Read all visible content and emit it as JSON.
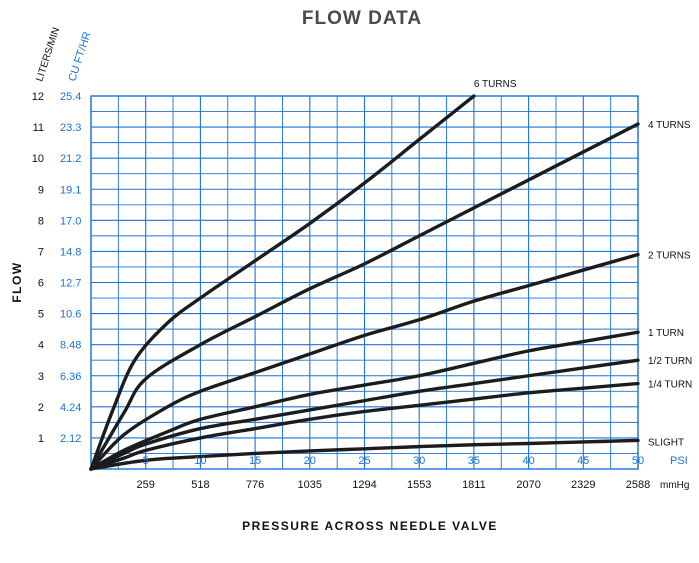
{
  "chart_data": {
    "type": "line",
    "title": "FLOW DATA",
    "xlabel": "PRESSURE ACROSS NEEDLE VALVE",
    "ylabel": "FLOW",
    "y_units_left": "LITERS/MIN",
    "y_units_right": "CU FT/HR",
    "x_units_psi": "PSI",
    "x_units_mmhg": "mmHg",
    "xlim": [
      0,
      50
    ],
    "ylim": [
      0,
      12
    ],
    "grid": true,
    "x_ticks_psi": [
      5,
      10,
      15,
      20,
      25,
      30,
      35,
      40,
      45,
      50
    ],
    "x_ticks_mmhg": [
      "259",
      "518",
      "776",
      "1035",
      "1294",
      "1553",
      "1811",
      "2070",
      "2329",
      "2588"
    ],
    "y_ticks_lpm": [
      1,
      2,
      3,
      4,
      5,
      6,
      7,
      8,
      9,
      10,
      11,
      12
    ],
    "y_ticks_cfh": [
      "2.12",
      "4.24",
      "6.36",
      "8.48",
      "10.6",
      "12.7",
      "14.8",
      "17.0",
      "19.1",
      "21.2",
      "23.3",
      "25.4"
    ],
    "series": [
      {
        "name": "6 TURNS",
        "x": [
          0,
          2,
          4,
          7,
          10,
          15,
          20,
          25,
          30,
          35
        ],
        "y": [
          0,
          1.9,
          3.5,
          4.7,
          5.5,
          6.7,
          7.9,
          9.2,
          10.6,
          12.0
        ]
      },
      {
        "name": "4 TURNS",
        "x": [
          0,
          3,
          5,
          10,
          15,
          20,
          25,
          30,
          35,
          40,
          45,
          50
        ],
        "y": [
          0,
          1.8,
          2.9,
          4.0,
          4.9,
          5.8,
          6.6,
          7.5,
          8.4,
          9.3,
          10.2,
          11.1
        ]
      },
      {
        "name": "2 TURNS",
        "x": [
          0,
          3,
          7,
          10,
          15,
          20,
          25,
          30,
          35,
          40,
          45,
          50
        ],
        "y": [
          0,
          1.1,
          2.0,
          2.5,
          3.1,
          3.7,
          4.3,
          4.8,
          5.4,
          5.9,
          6.4,
          6.9
        ]
      },
      {
        "name": "1 TURN",
        "x": [
          0,
          3,
          7,
          10,
          15,
          20,
          25,
          30,
          35,
          40,
          45,
          50
        ],
        "y": [
          0,
          0.6,
          1.2,
          1.6,
          2.0,
          2.4,
          2.7,
          3.0,
          3.4,
          3.8,
          4.1,
          4.4
        ]
      },
      {
        "name": "1/2 TURN",
        "x": [
          0,
          3,
          5,
          10,
          15,
          20,
          25,
          30,
          35,
          40,
          45,
          50
        ],
        "y": [
          0,
          0.5,
          0.8,
          1.3,
          1.6,
          1.9,
          2.2,
          2.5,
          2.75,
          3.0,
          3.25,
          3.5
        ]
      },
      {
        "name": "1/4 TURN",
        "x": [
          0,
          3,
          5,
          10,
          15,
          20,
          25,
          30,
          35,
          40,
          45,
          50
        ],
        "y": [
          0,
          0.35,
          0.6,
          1.0,
          1.3,
          1.6,
          1.85,
          2.05,
          2.25,
          2.45,
          2.6,
          2.75
        ]
      },
      {
        "name": "SLIGHT",
        "x": [
          0,
          5,
          10,
          15,
          20,
          25,
          30,
          35,
          40,
          45,
          50
        ],
        "y": [
          0,
          0.28,
          0.4,
          0.5,
          0.58,
          0.65,
          0.72,
          0.78,
          0.82,
          0.87,
          0.92
        ]
      }
    ]
  }
}
